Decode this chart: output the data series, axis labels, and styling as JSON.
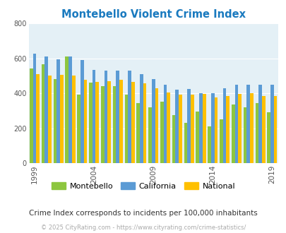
{
  "title": "Montebello Violent Crime Index",
  "title_color": "#1a7abf",
  "years": [
    1999,
    2000,
    2001,
    2002,
    2003,
    2004,
    2005,
    2006,
    2007,
    2008,
    2009,
    2010,
    2011,
    2012,
    2013,
    2014,
    2015,
    2016,
    2017,
    2018,
    2019
  ],
  "montebello": [
    540,
    565,
    480,
    610,
    390,
    460,
    440,
    440,
    390,
    345,
    320,
    350,
    275,
    230,
    295,
    210,
    250,
    335,
    320,
    345,
    290
  ],
  "california": [
    625,
    610,
    595,
    610,
    590,
    535,
    530,
    530,
    530,
    510,
    480,
    450,
    420,
    425,
    400,
    400,
    430,
    450,
    450,
    450,
    450
  ],
  "national": [
    510,
    500,
    505,
    500,
    475,
    465,
    470,
    475,
    465,
    455,
    430,
    405,
    390,
    390,
    395,
    375,
    385,
    395,
    400,
    385,
    385
  ],
  "bar_colors": {
    "montebello": "#8DC63F",
    "california": "#5B9BD5",
    "national": "#FFC000"
  },
  "bg_color": "#e4f0f6",
  "ylim": [
    0,
    800
  ],
  "yticks": [
    0,
    200,
    400,
    600,
    800
  ],
  "xtick_years": [
    1999,
    2004,
    2009,
    2014,
    2019
  ],
  "footnote1": "Crime Index corresponds to incidents per 100,000 inhabitants",
  "footnote2": "© 2025 CityRating.com - https://www.cityrating.com/crime-statistics/",
  "footnote1_color": "#333333",
  "footnote2_color": "#aaaaaa"
}
